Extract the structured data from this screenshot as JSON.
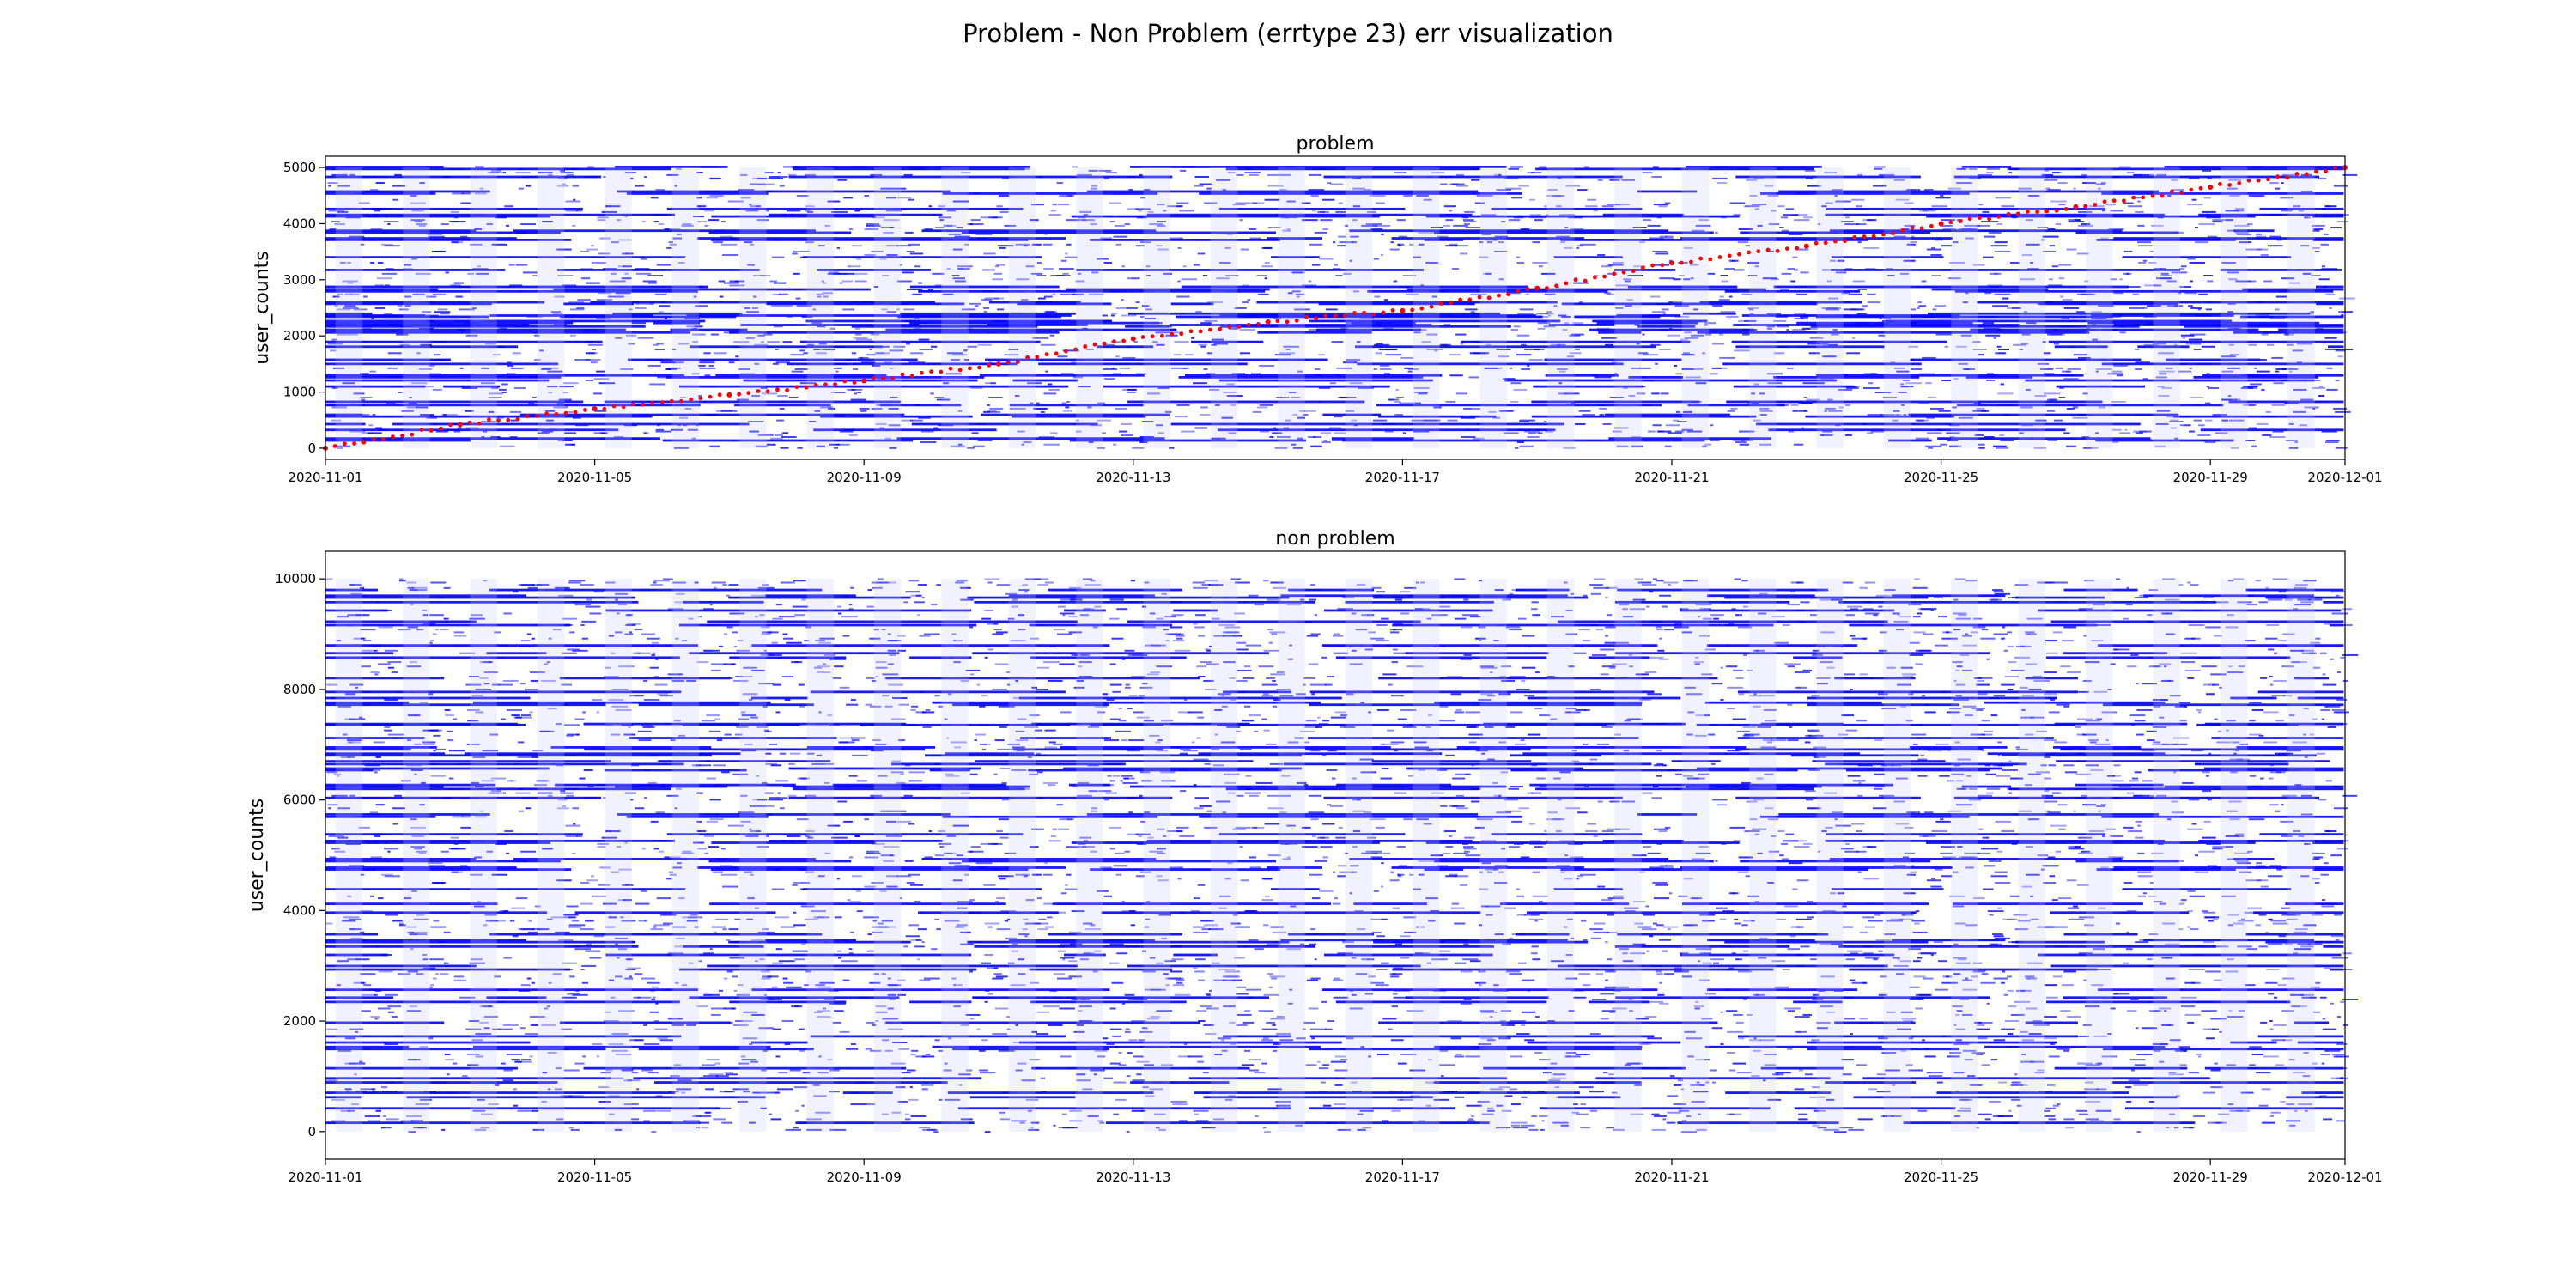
{
  "figure": {
    "suptitle": "Problem - Non Problem (errtype 23)  err visualization"
  },
  "colors": {
    "scatter": "#0000ff",
    "problem_highlight": "#ff0000",
    "axes": "#000000",
    "background": "#ffffff"
  },
  "chart_data": [
    {
      "type": "scatter",
      "title": "problem",
      "xlabel": "",
      "ylabel": "user_counts",
      "x_type": "date",
      "xlim": [
        "2020-11-01",
        "2020-12-01"
      ],
      "ylim": [
        -200,
        5200
      ],
      "x_ticks": [
        "2020-11-01",
        "2020-11-05",
        "2020-11-09",
        "2020-11-13",
        "2020-11-17",
        "2020-11-21",
        "2020-11-25",
        "2020-11-29",
        "2020-12-01"
      ],
      "y_ticks": [
        0,
        1000,
        2000,
        3000,
        4000,
        5000
      ],
      "grid": false,
      "series": [
        {
          "color": "#0000ff",
          "marker": "dense points",
          "x_range": [
            "2020-11-01",
            "2020-12-01"
          ],
          "y_range": [
            0,
            5000
          ]
        },
        {
          "color": "#ff0000",
          "marker": "trend points",
          "x": [
            "2020-11-01",
            "2020-11-03",
            "2020-11-05",
            "2020-11-07",
            "2020-11-09",
            "2020-11-11",
            "2020-11-13",
            "2020-11-15",
            "2020-11-17",
            "2020-11-19",
            "2020-11-21",
            "2020-11-23",
            "2020-11-25",
            "2020-11-27",
            "2020-11-29",
            "2020-12-01"
          ],
          "y": [
            0,
            420,
            700,
            950,
            1200,
            1500,
            1950,
            2250,
            2450,
            2850,
            3300,
            3600,
            4000,
            4300,
            4650,
            5000
          ]
        }
      ]
    },
    {
      "type": "scatter",
      "title": "non problem",
      "xlabel": "",
      "ylabel": "user_counts",
      "x_type": "date",
      "xlim": [
        "2020-11-01",
        "2020-12-01"
      ],
      "ylim": [
        -500,
        10500
      ],
      "x_ticks": [
        "2020-11-01",
        "2020-11-05",
        "2020-11-09",
        "2020-11-13",
        "2020-11-17",
        "2020-11-21",
        "2020-11-25",
        "2020-11-29",
        "2020-12-01"
      ],
      "y_ticks": [
        0,
        2000,
        4000,
        6000,
        8000,
        10000
      ],
      "grid": false,
      "series": [
        {
          "color": "#0000ff",
          "marker": "dense points",
          "x_range": [
            "2020-11-01",
            "2020-12-01"
          ],
          "y_range": [
            0,
            10000
          ]
        }
      ]
    }
  ]
}
